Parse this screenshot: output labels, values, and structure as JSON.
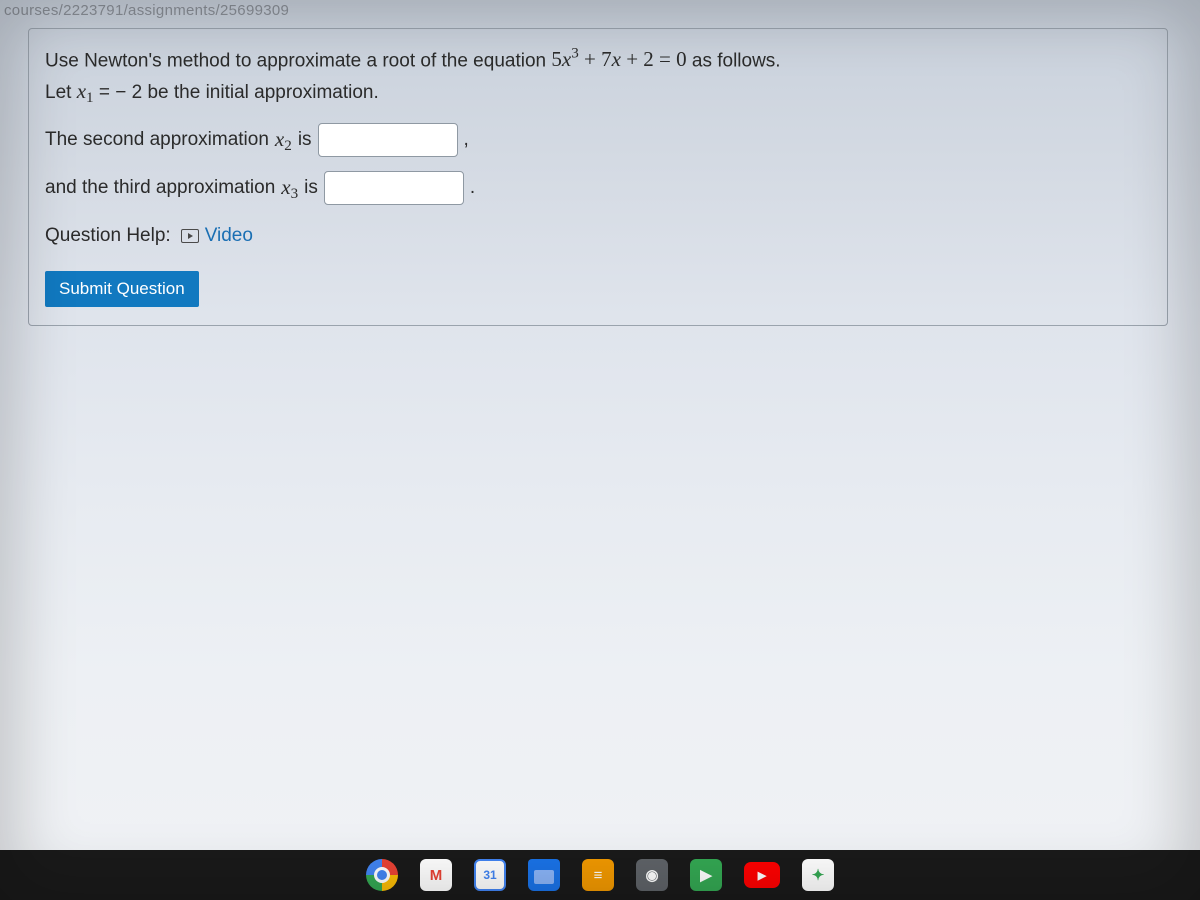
{
  "url_fragment": "courses/2223791/assignments/25699309",
  "question": {
    "line1_prefix": "Use Newton's method to approximate a root of the equation ",
    "equation": "5x³ + 7x + 2 = 0",
    "eq_coef1": "5",
    "eq_var": "x",
    "eq_exp": "3",
    "eq_plus1": " + 7",
    "eq_plus2": " + 2 = 0",
    "line1_suffix": " as follows.",
    "line2_prefix": "Let ",
    "x1_var": "x",
    "x1_sub": "1",
    "line2_eq": " =  − 2 be the initial approximation.",
    "line3_prefix": "The second approximation ",
    "x2_var": "x",
    "x2_sub": "2",
    "line3_suffix": " is",
    "comma": ",",
    "line4_prefix": "and the third approximation ",
    "x3_var": "x",
    "x3_sub": "3",
    "line4_suffix": " is",
    "period": "."
  },
  "help": {
    "label": "Question Help:",
    "video_label": "Video"
  },
  "submit_label": "Submit Question",
  "inputs": {
    "x2_value": "",
    "x3_value": ""
  },
  "taskbar": {
    "items": [
      {
        "name": "chrome",
        "bg": "conic-gradient(#ea4335 0 90deg,#fbbc05 90deg 180deg,#34a853 180deg 270deg,#4285f4 270deg 360deg)",
        "glyph": ""
      },
      {
        "name": "gmail",
        "bg": "#ffffff",
        "glyph": "M",
        "glyph_color": "#ea4335"
      },
      {
        "name": "calendar",
        "bg": "#ffffff",
        "glyph": "31",
        "glyph_color": "#4285f4"
      },
      {
        "name": "files",
        "bg": "#1a73e8",
        "glyph": ""
      },
      {
        "name": "docs",
        "bg": "#f29900",
        "glyph": "≡"
      },
      {
        "name": "camera",
        "bg": "#5f6368",
        "glyph": "◉"
      },
      {
        "name": "play",
        "bg": "#34a853",
        "glyph": "▶"
      },
      {
        "name": "youtube",
        "bg": "#ff0000",
        "glyph": "▶"
      },
      {
        "name": "pinwheel",
        "bg": "#ffffff",
        "glyph": "✦",
        "glyph_color": "#34a853"
      }
    ]
  },
  "colors": {
    "card_border": "#9aa3ad",
    "text": "#2b2b2b",
    "link": "#1a6fb3",
    "submit_bg": "#1179c0",
    "taskbar_bg": "#1a1a1a"
  }
}
